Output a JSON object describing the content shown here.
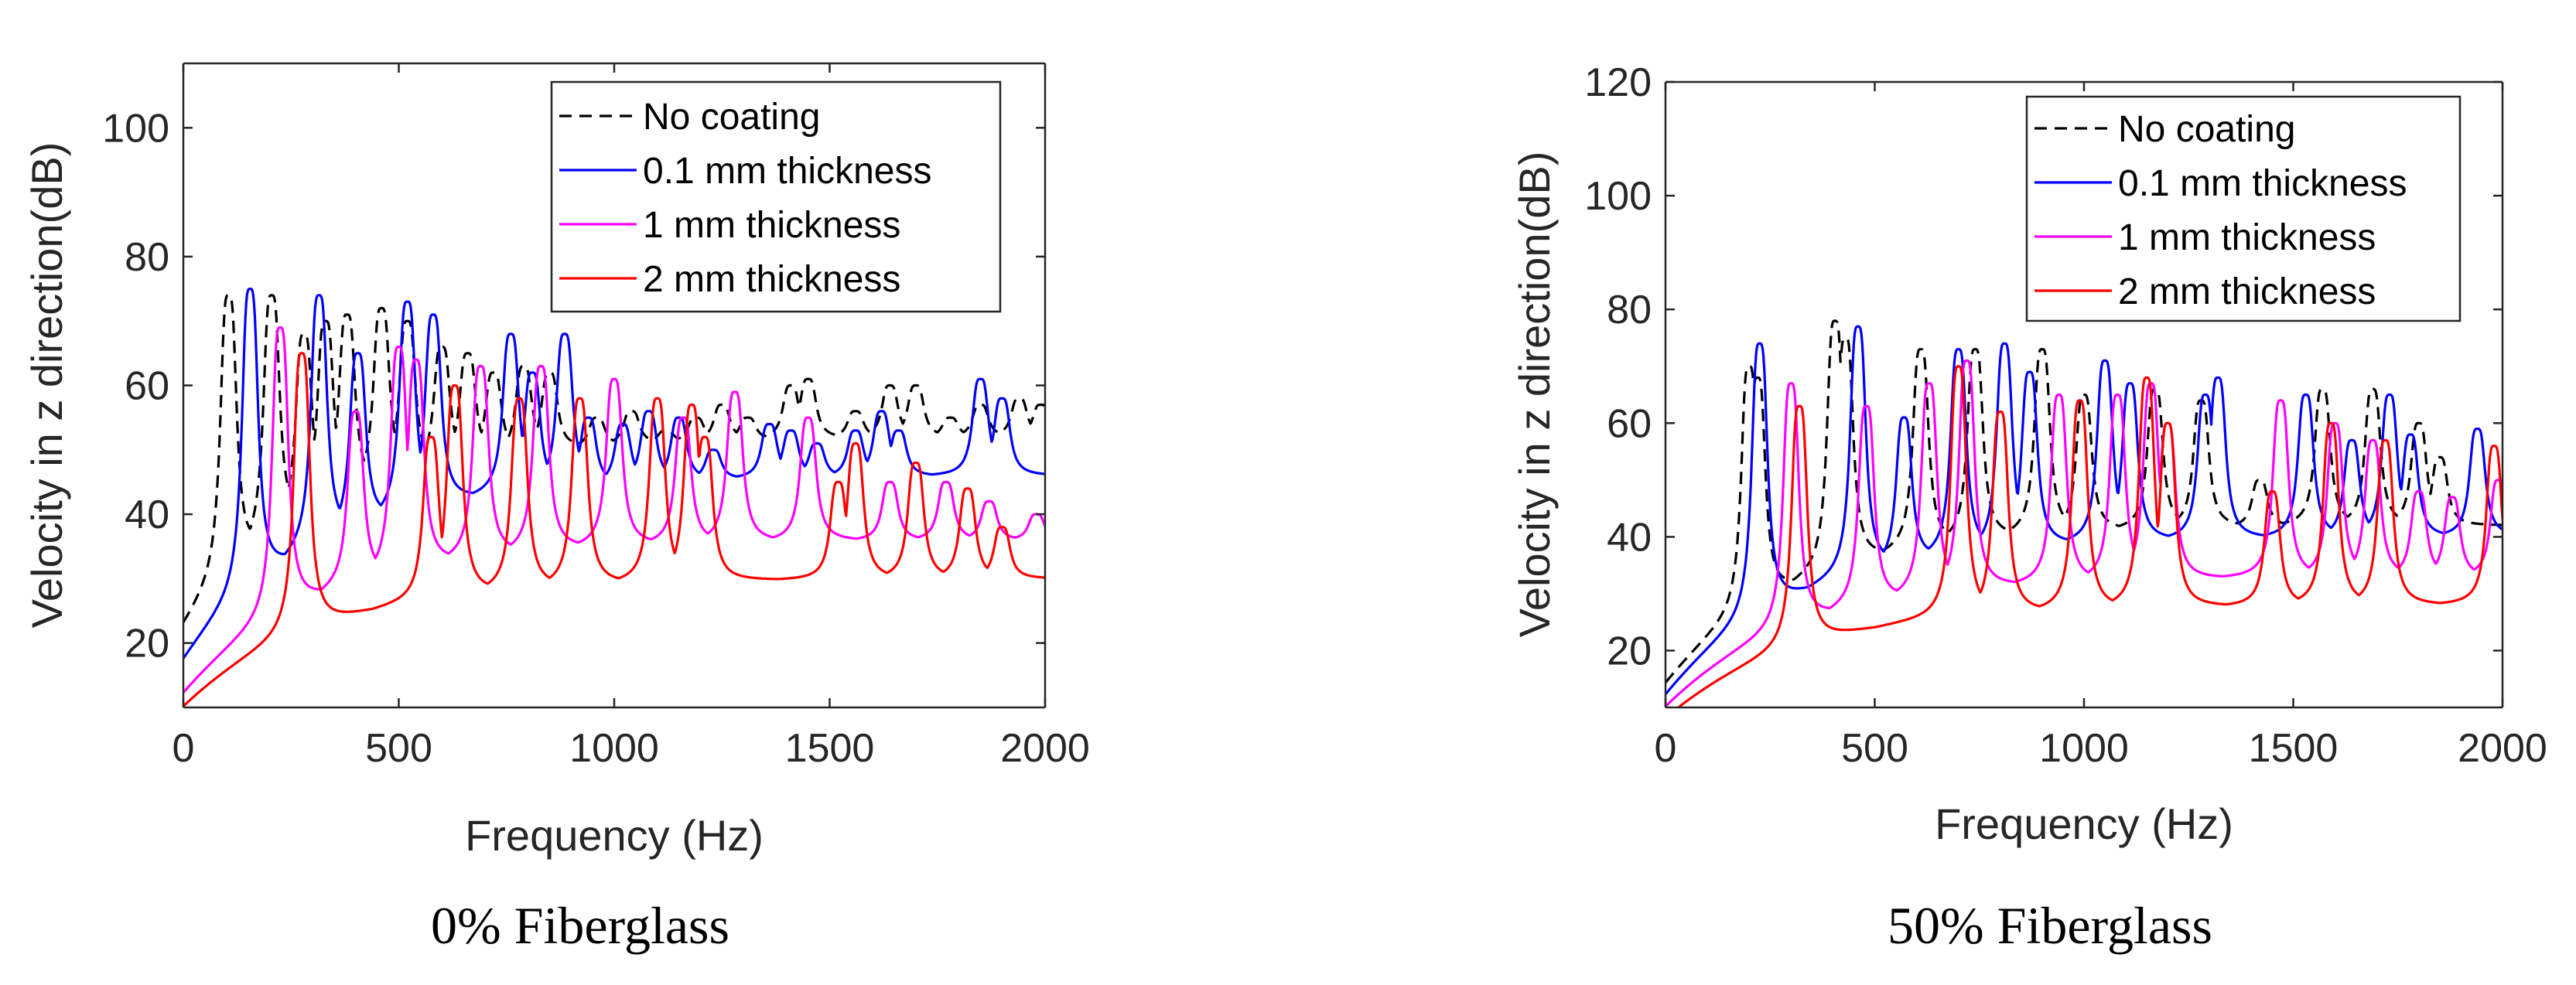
{
  "chart_data": [
    {
      "type": "line",
      "title": "",
      "caption": "0% Fiberglass",
      "xlabel": "Frequency (Hz)",
      "ylabel": "Velocity in z direction(dB)",
      "xlim": [
        0,
        2000
      ],
      "ylim": [
        10,
        110
      ],
      "xticks": [
        0,
        500,
        1000,
        1500,
        2000
      ],
      "yticks": [
        20,
        40,
        60,
        80,
        100
      ],
      "grid": false,
      "legend_position": "top-right",
      "series": [
        {
          "name": "No coating",
          "color": "#000000",
          "style": "dashed",
          "base_start": 22,
          "base_plateau": 52,
          "peaks": [
            [
              105,
              74
            ],
            [
              205,
              74
            ],
            [
              280,
              68
            ],
            [
              330,
              70
            ],
            [
              380,
              71
            ],
            [
              460,
              72
            ],
            [
              520,
              70
            ],
            [
              600,
              66
            ],
            [
              660,
              65
            ],
            [
              720,
              62
            ],
            [
              790,
              63
            ],
            [
              850,
              62
            ],
            [
              960,
              55
            ],
            [
              1040,
              56
            ],
            [
              1120,
              53
            ],
            [
              1190,
              55
            ],
            [
              1250,
              57
            ],
            [
              1310,
              55
            ],
            [
              1410,
              60
            ],
            [
              1450,
              61
            ],
            [
              1560,
              56
            ],
            [
              1640,
              60
            ],
            [
              1700,
              60
            ],
            [
              1780,
              55
            ],
            [
              1850,
              57
            ],
            [
              1940,
              58
            ],
            [
              1990,
              57
            ]
          ]
        },
        {
          "name": "0.1 mm thickness",
          "color": "#0000ff",
          "style": "solid",
          "base_start": 17,
          "base_plateau": 46,
          "peaks": [
            [
              155,
              75
            ],
            [
              315,
              74
            ],
            [
              405,
              65
            ],
            [
              520,
              73
            ],
            [
              580,
              71
            ],
            [
              760,
              68
            ],
            [
              810,
              62
            ],
            [
              885,
              68
            ],
            [
              940,
              55
            ],
            [
              1020,
              54
            ],
            [
              1080,
              56
            ],
            [
              1150,
              55
            ],
            [
              1230,
              50
            ],
            [
              1360,
              54
            ],
            [
              1410,
              53
            ],
            [
              1470,
              51
            ],
            [
              1560,
              53
            ],
            [
              1620,
              56
            ],
            [
              1660,
              53
            ],
            [
              1850,
              61
            ],
            [
              1900,
              58
            ]
          ]
        },
        {
          "name": "1 mm thickness",
          "color": "#ff00ff",
          "style": "solid",
          "base_start": 12,
          "base_plateau": 36,
          "peaks": [
            [
              225,
              69
            ],
            [
              400,
              56
            ],
            [
              500,
              66
            ],
            [
              540,
              64
            ],
            [
              690,
              63
            ],
            [
              830,
              63
            ],
            [
              1000,
              61
            ],
            [
              1160,
              55
            ],
            [
              1280,
              59
            ],
            [
              1450,
              55
            ],
            [
              1640,
              45
            ],
            [
              1770,
              45
            ],
            [
              1870,
              42
            ],
            [
              1980,
              40
            ]
          ]
        },
        {
          "name": "2 mm thickness",
          "color": "#ff0000",
          "style": "solid",
          "base_start": 10,
          "base_plateau": 30,
          "peaks": [
            [
              275,
              65
            ],
            [
              575,
              52
            ],
            [
              630,
              60
            ],
            [
              780,
              58
            ],
            [
              920,
              58
            ],
            [
              1100,
              58
            ],
            [
              1180,
              57
            ],
            [
              1210,
              52
            ],
            [
              1520,
              45
            ],
            [
              1560,
              51
            ],
            [
              1700,
              48
            ],
            [
              1820,
              44
            ],
            [
              1900,
              38
            ]
          ]
        }
      ]
    },
    {
      "type": "line",
      "title": "",
      "caption": "50% Fiberglass",
      "xlabel": "Frequency (Hz)",
      "ylabel": "Velocity in z direction(dB)",
      "xlim": [
        0,
        2000
      ],
      "ylim": [
        10,
        120
      ],
      "xticks": [
        0,
        500,
        1000,
        1500,
        2000
      ],
      "yticks": [
        20,
        40,
        60,
        80,
        100,
        120
      ],
      "grid": false,
      "legend_position": "top-right",
      "series": [
        {
          "name": "No coating",
          "color": "#000000",
          "style": "dashed",
          "base_start": 14,
          "base_plateau": 42,
          "peaks": [
            [
              200,
              70
            ],
            [
              220,
              68
            ],
            [
              405,
              78
            ],
            [
              430,
              75
            ],
            [
              610,
              73
            ],
            [
              740,
              73
            ],
            [
              900,
              73
            ],
            [
              1000,
              65
            ],
            [
              1170,
              66
            ],
            [
              1280,
              64
            ],
            [
              1420,
              50
            ],
            [
              1570,
              66
            ],
            [
              1690,
              66
            ],
            [
              1800,
              60
            ],
            [
              1850,
              54
            ]
          ]
        },
        {
          "name": "0.1 mm thickness",
          "color": "#0000ff",
          "style": "solid",
          "base_start": 12,
          "base_plateau": 40,
          "peaks": [
            [
              225,
              74
            ],
            [
              460,
              77
            ],
            [
              570,
              61
            ],
            [
              700,
              73
            ],
            [
              810,
              74
            ],
            [
              870,
              69
            ],
            [
              1050,
              71
            ],
            [
              1110,
              67
            ],
            [
              1290,
              65
            ],
            [
              1320,
              68
            ],
            [
              1530,
              65
            ],
            [
              1640,
              57
            ],
            [
              1730,
              65
            ],
            [
              1780,
              58
            ],
            [
              1940,
              59
            ]
          ]
        },
        {
          "name": "1 mm thickness",
          "color": "#ff00ff",
          "style": "solid",
          "base_start": 10,
          "base_plateau": 33,
          "peaks": [
            [
              300,
              67
            ],
            [
              480,
              63
            ],
            [
              630,
              67
            ],
            [
              720,
              71
            ],
            [
              940,
              65
            ],
            [
              1080,
              65
            ],
            [
              1160,
              67
            ],
            [
              1200,
              60
            ],
            [
              1470,
              64
            ],
            [
              1600,
              60
            ],
            [
              1690,
              57
            ],
            [
              1800,
              48
            ],
            [
              1880,
              47
            ],
            [
              1990,
              50
            ]
          ]
        },
        {
          "name": "2 mm thickness",
          "color": "#ff0000",
          "style": "solid",
          "base_start": 8,
          "base_plateau": 28,
          "peaks": [
            [
              320,
              63
            ],
            [
              700,
              70
            ],
            [
              800,
              62
            ],
            [
              990,
              64
            ],
            [
              1150,
              68
            ],
            [
              1200,
              60
            ],
            [
              1450,
              48
            ],
            [
              1590,
              60
            ],
            [
              1720,
              57
            ],
            [
              1980,
              56
            ]
          ]
        }
      ]
    }
  ]
}
